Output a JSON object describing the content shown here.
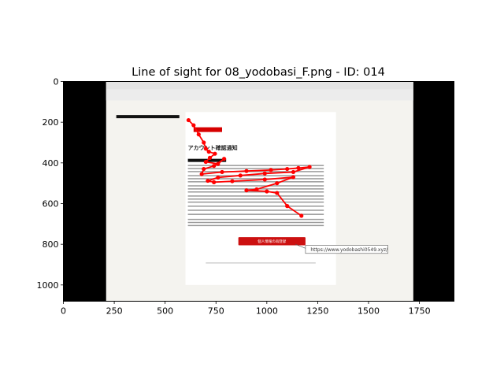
{
  "chart_data": {
    "type": "scatter",
    "title": "Line of sight for 08_yodobasi_F.png - ID: 014",
    "xlabel": "",
    "ylabel": "",
    "xlim": [
      0,
      1920
    ],
    "ylim": [
      1080,
      0
    ],
    "xticks": [
      0,
      250,
      500,
      750,
      1000,
      1250,
      1500,
      1750
    ],
    "yticks": [
      0,
      200,
      400,
      600,
      800,
      1000
    ],
    "y_inverted": true,
    "grid": false,
    "legend": "none",
    "image_extent": {
      "x": [
        0,
        1920
      ],
      "y": [
        0,
        1080
      ]
    },
    "screen_region": {
      "x": [
        210,
        1720
      ],
      "y": [
        0,
        1080
      ]
    },
    "email": {
      "heading": "アカウント確認通知",
      "button_label": "個人情報の再登録",
      "url": "https://www.yodobashi0549.xyz/"
    },
    "colors": {
      "gaze": "#ff0000",
      "letterbox": "#000000"
    },
    "gaze_path": [
      {
        "x": 615,
        "y": 190
      },
      {
        "x": 640,
        "y": 215
      },
      {
        "x": 665,
        "y": 260
      },
      {
        "x": 690,
        "y": 300
      },
      {
        "x": 700,
        "y": 330
      },
      {
        "x": 715,
        "y": 345
      },
      {
        "x": 745,
        "y": 355
      },
      {
        "x": 720,
        "y": 375
      },
      {
        "x": 700,
        "y": 395
      },
      {
        "x": 760,
        "y": 405
      },
      {
        "x": 790,
        "y": 380
      },
      {
        "x": 740,
        "y": 415
      },
      {
        "x": 690,
        "y": 430
      },
      {
        "x": 680,
        "y": 455
      },
      {
        "x": 780,
        "y": 445
      },
      {
        "x": 900,
        "y": 440
      },
      {
        "x": 1020,
        "y": 435
      },
      {
        "x": 1100,
        "y": 430
      },
      {
        "x": 1155,
        "y": 425
      },
      {
        "x": 1210,
        "y": 420
      },
      {
        "x": 1130,
        "y": 445
      },
      {
        "x": 990,
        "y": 452
      },
      {
        "x": 870,
        "y": 462
      },
      {
        "x": 760,
        "y": 472
      },
      {
        "x": 710,
        "y": 488
      },
      {
        "x": 740,
        "y": 495
      },
      {
        "x": 830,
        "y": 490
      },
      {
        "x": 990,
        "y": 482
      },
      {
        "x": 1130,
        "y": 470
      },
      {
        "x": 1050,
        "y": 500
      },
      {
        "x": 950,
        "y": 530
      },
      {
        "x": 900,
        "y": 535
      },
      {
        "x": 1000,
        "y": 540
      },
      {
        "x": 1050,
        "y": 548
      },
      {
        "x": 1100,
        "y": 612
      },
      {
        "x": 1170,
        "y": 660
      }
    ]
  }
}
